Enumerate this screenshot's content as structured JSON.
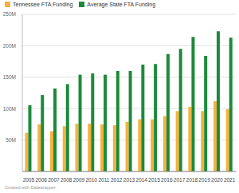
{
  "chart_data": {
    "type": "bar",
    "source": "Created with Datawrapper",
    "categories": [
      "2005",
      "2006",
      "2007",
      "2008",
      "2009",
      "2010",
      "2011",
      "2012",
      "2013",
      "2014",
      "2015",
      "2016",
      "2017",
      "2018",
      "2019",
      "2020",
      "2021"
    ],
    "series": [
      {
        "name": "Tennessee FTA Funding",
        "color": "#f6b23c",
        "values": [
          61.5,
          75,
          64,
          72,
          76,
          76,
          75,
          73.5,
          79,
          83,
          83,
          88,
          96,
          103,
          96,
          112,
          99
        ]
      },
      {
        "name": "Average State FTA Funding",
        "color": "#1d8a3b",
        "values": [
          105.6,
          121.7,
          132,
          139,
          154,
          156,
          154,
          160,
          160,
          170,
          171,
          187,
          195,
          214,
          184,
          223,
          213
        ]
      }
    ],
    "ylim": [
      0,
      250
    ],
    "yticks": [
      {
        "value": 50,
        "label": "50M"
      },
      {
        "value": 100,
        "label": "100M"
      },
      {
        "value": 150,
        "label": "150M"
      },
      {
        "value": 200,
        "label": "200M"
      },
      {
        "value": 250,
        "label": "250M"
      }
    ],
    "grid": true,
    "legend": "top-left"
  }
}
